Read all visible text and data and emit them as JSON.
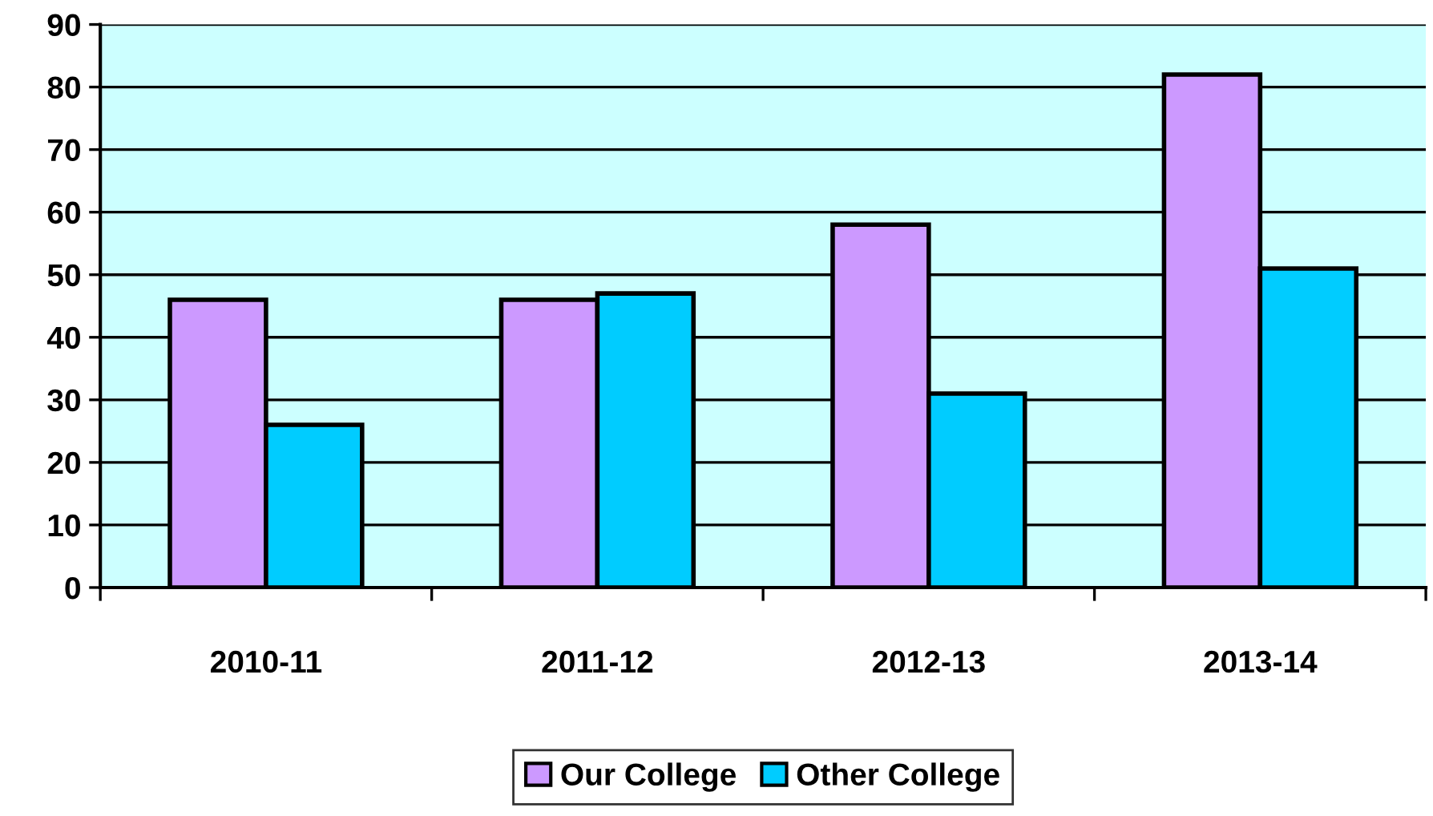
{
  "chart_data": {
    "type": "bar",
    "categories": [
      "2010-11",
      "2011-12",
      "2012-13",
      "2013-14"
    ],
    "series": [
      {
        "name": "Our College",
        "color": "#cc99ff",
        "values": [
          46,
          46,
          58,
          82
        ]
      },
      {
        "name": "Other College",
        "color": "#00ccff",
        "values": [
          26,
          47,
          31,
          51
        ]
      }
    ],
    "ylim": [
      0,
      90
    ],
    "yticks": [
      0,
      10,
      20,
      30,
      40,
      50,
      60,
      70,
      80,
      90
    ],
    "grid": "y",
    "legend": "bottom"
  }
}
